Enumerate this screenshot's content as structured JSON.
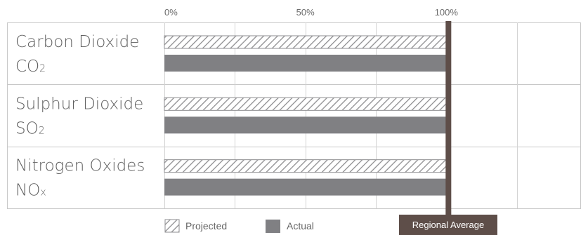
{
  "chart_data": {
    "type": "bar",
    "orientation": "horizontal",
    "categories": [
      {
        "name": "Carbon Dioxide",
        "formula": "CO",
        "sub": "2"
      },
      {
        "name": "Sulphur Dioxide",
        "formula": "SO",
        "sub": "2"
      },
      {
        "name": "Nitrogen Oxides",
        "formula": "NO",
        "sub": "x"
      }
    ],
    "series": [
      {
        "name": "Projected",
        "style": "hatched",
        "values": [
          100,
          100,
          100
        ]
      },
      {
        "name": "Actual",
        "style": "solid",
        "values": [
          100,
          100,
          100
        ]
      }
    ],
    "x_ticks": [
      "0%",
      "50%",
      "100%"
    ],
    "tick_values": [
      0,
      50,
      100
    ],
    "xlim": [
      0,
      150
    ],
    "grid": true,
    "legend_position": "bottom",
    "reference_line": {
      "value": 100,
      "label": "Regional Average"
    },
    "colors": {
      "bar": "#808083",
      "hatch": "#8e8e90",
      "grid": "#d3d3d3",
      "reference": "#5e4e49",
      "border": "#c8c8c8"
    }
  }
}
